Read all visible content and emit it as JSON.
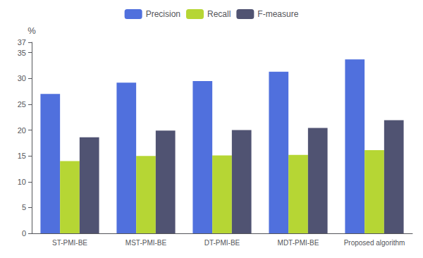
{
  "chart_data": {
    "type": "bar",
    "categories": [
      "ST-PMI-BE",
      "MST-PMI-BE",
      "DT-PMI-BE",
      "MDT-PMI-BE",
      "Proposed algorithm"
    ],
    "series": [
      {
        "name": "Precision",
        "values": [
          27.0,
          29.2,
          29.5,
          31.3,
          33.7
        ]
      },
      {
        "name": "Recall",
        "values": [
          14.0,
          15.0,
          15.1,
          15.2,
          16.1
        ]
      },
      {
        "name": "F-measure",
        "values": [
          18.6,
          19.9,
          20.0,
          20.4,
          21.9
        ]
      }
    ],
    "ylabel": "%",
    "ylim": [
      0,
      37
    ],
    "yticks": [
      0,
      5,
      10,
      15,
      20,
      25,
      30,
      35
    ],
    "grid": false,
    "legend": "top"
  }
}
